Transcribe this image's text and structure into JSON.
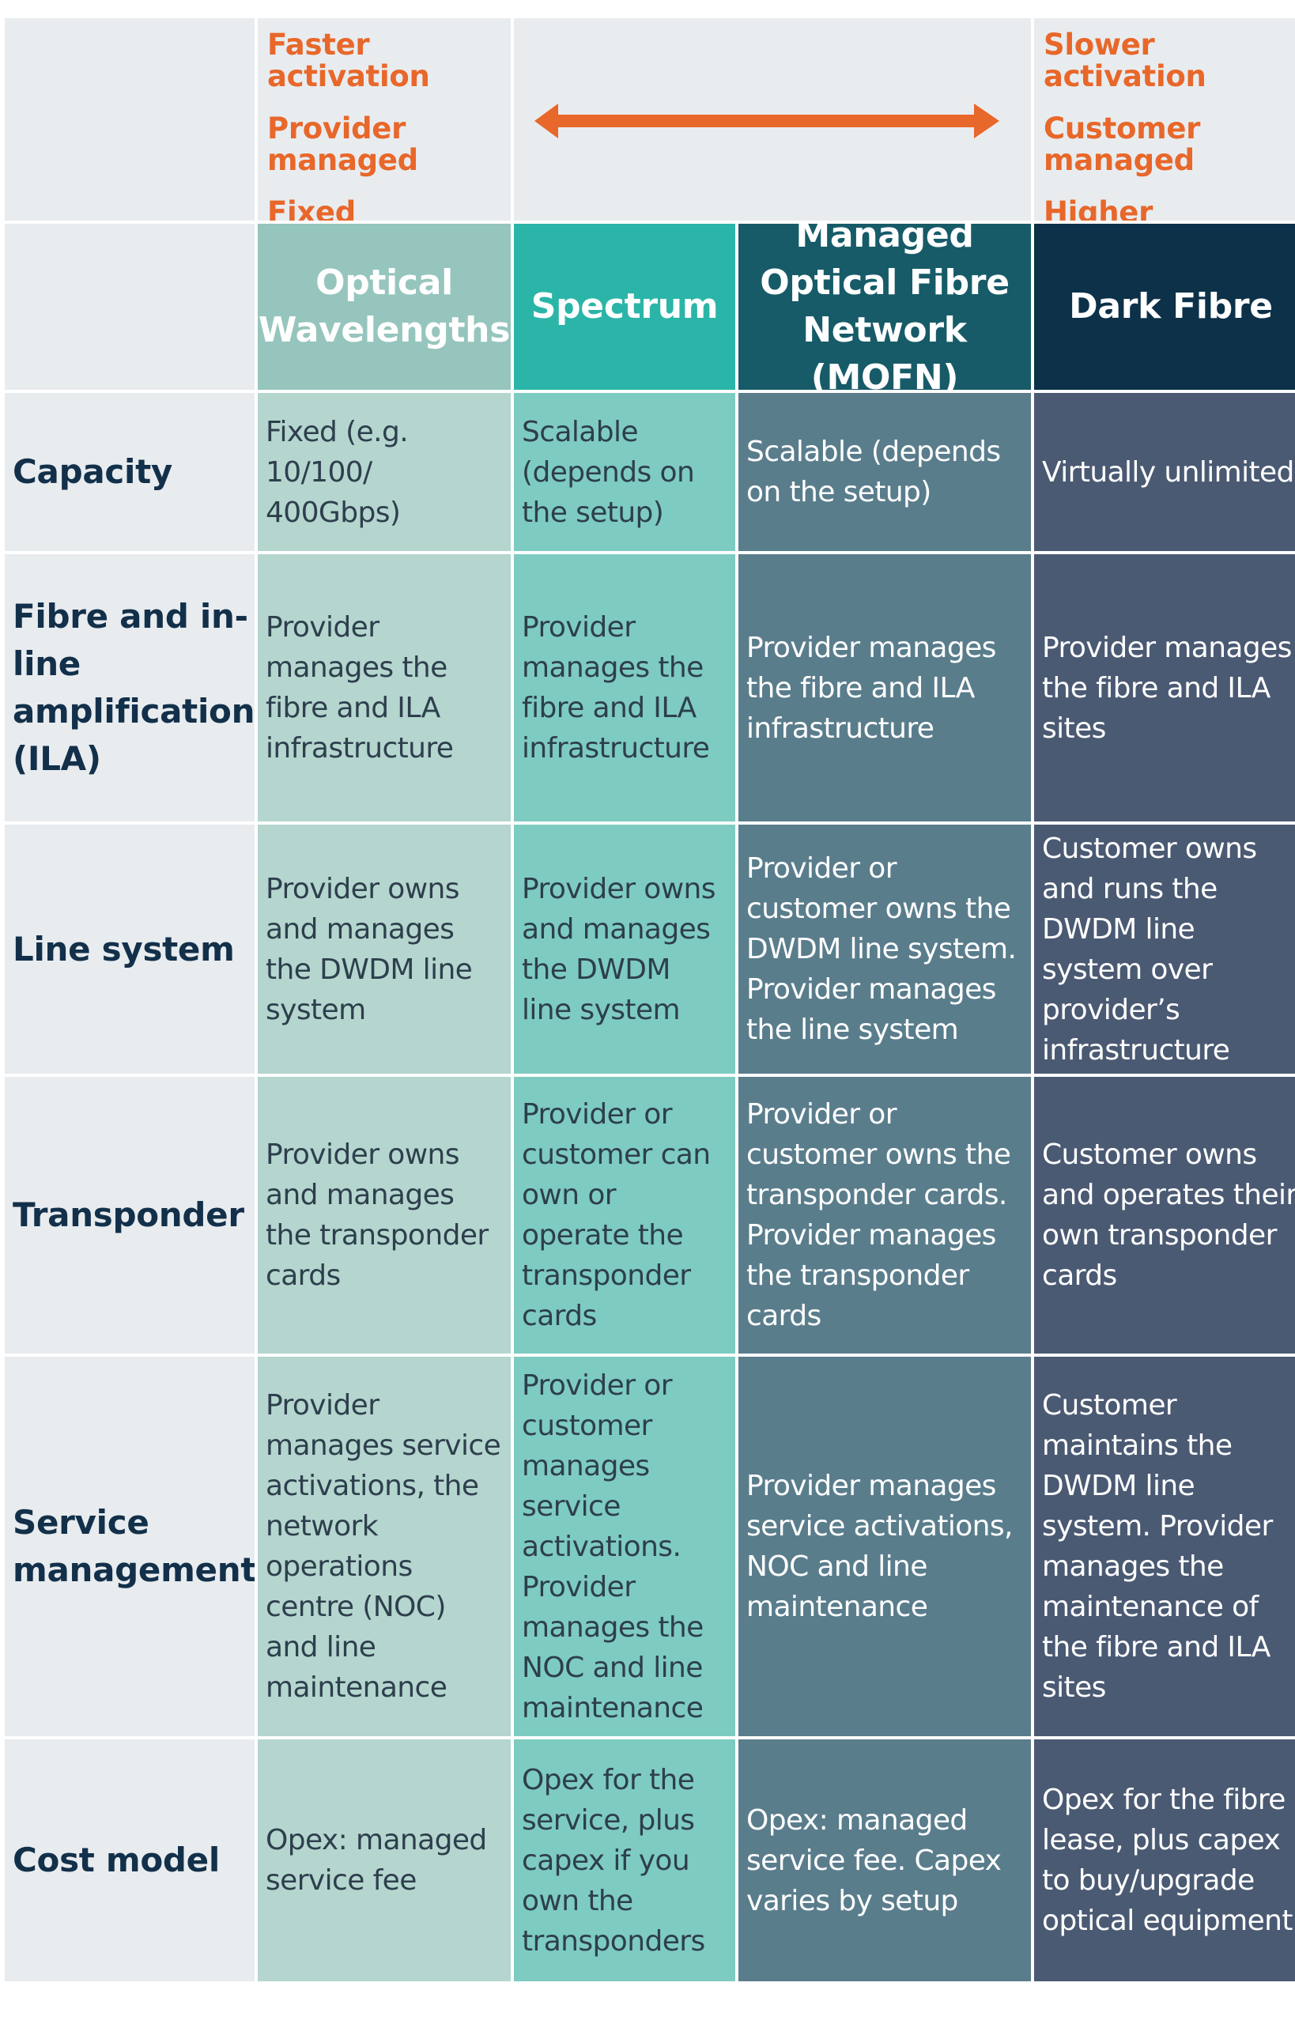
{
  "top": {
    "left": [
      "Faster activation",
      "Provider managed",
      "Fixed capacity"
    ],
    "right": [
      "Slower activation",
      "Customer managed",
      "Higher capacity"
    ]
  },
  "colors": {
    "accent": "#e8672a",
    "row_text": "#13304a"
  },
  "columns": [
    {
      "name": "Optical Wavelengths"
    },
    {
      "name": "Spectrum"
    },
    {
      "name": "Managed Optical Fibre Network (MOFN)"
    },
    {
      "name": "Dark Fibre"
    }
  ],
  "rows": [
    {
      "label": "Capacity",
      "cells": [
        "Fixed (e.g. 10/100/ 400Gbps)",
        "Scalable (depends on the setup)",
        "Scalable (depends on the setup)",
        "Virtually unlimited"
      ]
    },
    {
      "label": "Fibre and in-line amplification (ILA)",
      "cells": [
        "Provider manages the fibre and ILA infrastructure",
        "Provider manages the fibre and ILA infrastructure",
        "Provider manages the fibre and ILA infrastructure",
        "Provider manages the fibre and ILA sites"
      ]
    },
    {
      "label": "Line system",
      "cells": [
        "Provider owns and manages the DWDM line system",
        "Provider owns and manages the DWDM line system",
        "Provider or customer owns the DWDM line system. Provider manages the line system",
        "Customer owns and runs the DWDM line system over provider’s infrastructure"
      ]
    },
    {
      "label": "Transponder",
      "cells": [
        "Provider owns and manages the transponder cards",
        "Provider or customer can own or operate the transponder cards",
        "Provider or customer owns the transponder cards. Provider manages the transponder cards",
        "Customer owns and operates their own transponder cards"
      ]
    },
    {
      "label": "Service management",
      "cells": [
        "Provider manages service activations, the network operations centre (NOC) and line maintenance",
        "Provider or customer manages service activations. Provider manages the NOC and line maintenance",
        "Provider manages service activations, NOC and line maintenance",
        "Customer maintains the DWDM line system. Provider manages the maintenance of the fibre and ILA sites"
      ]
    },
    {
      "label": "Cost model",
      "cells": [
        "Opex: managed service fee",
        "Opex for the service, plus capex if you own the transponders",
        "Opex: managed service fee. Capex varies by setup",
        "Opex for the fibre lease, plus capex to buy/upgrade optical equipment"
      ]
    }
  ]
}
